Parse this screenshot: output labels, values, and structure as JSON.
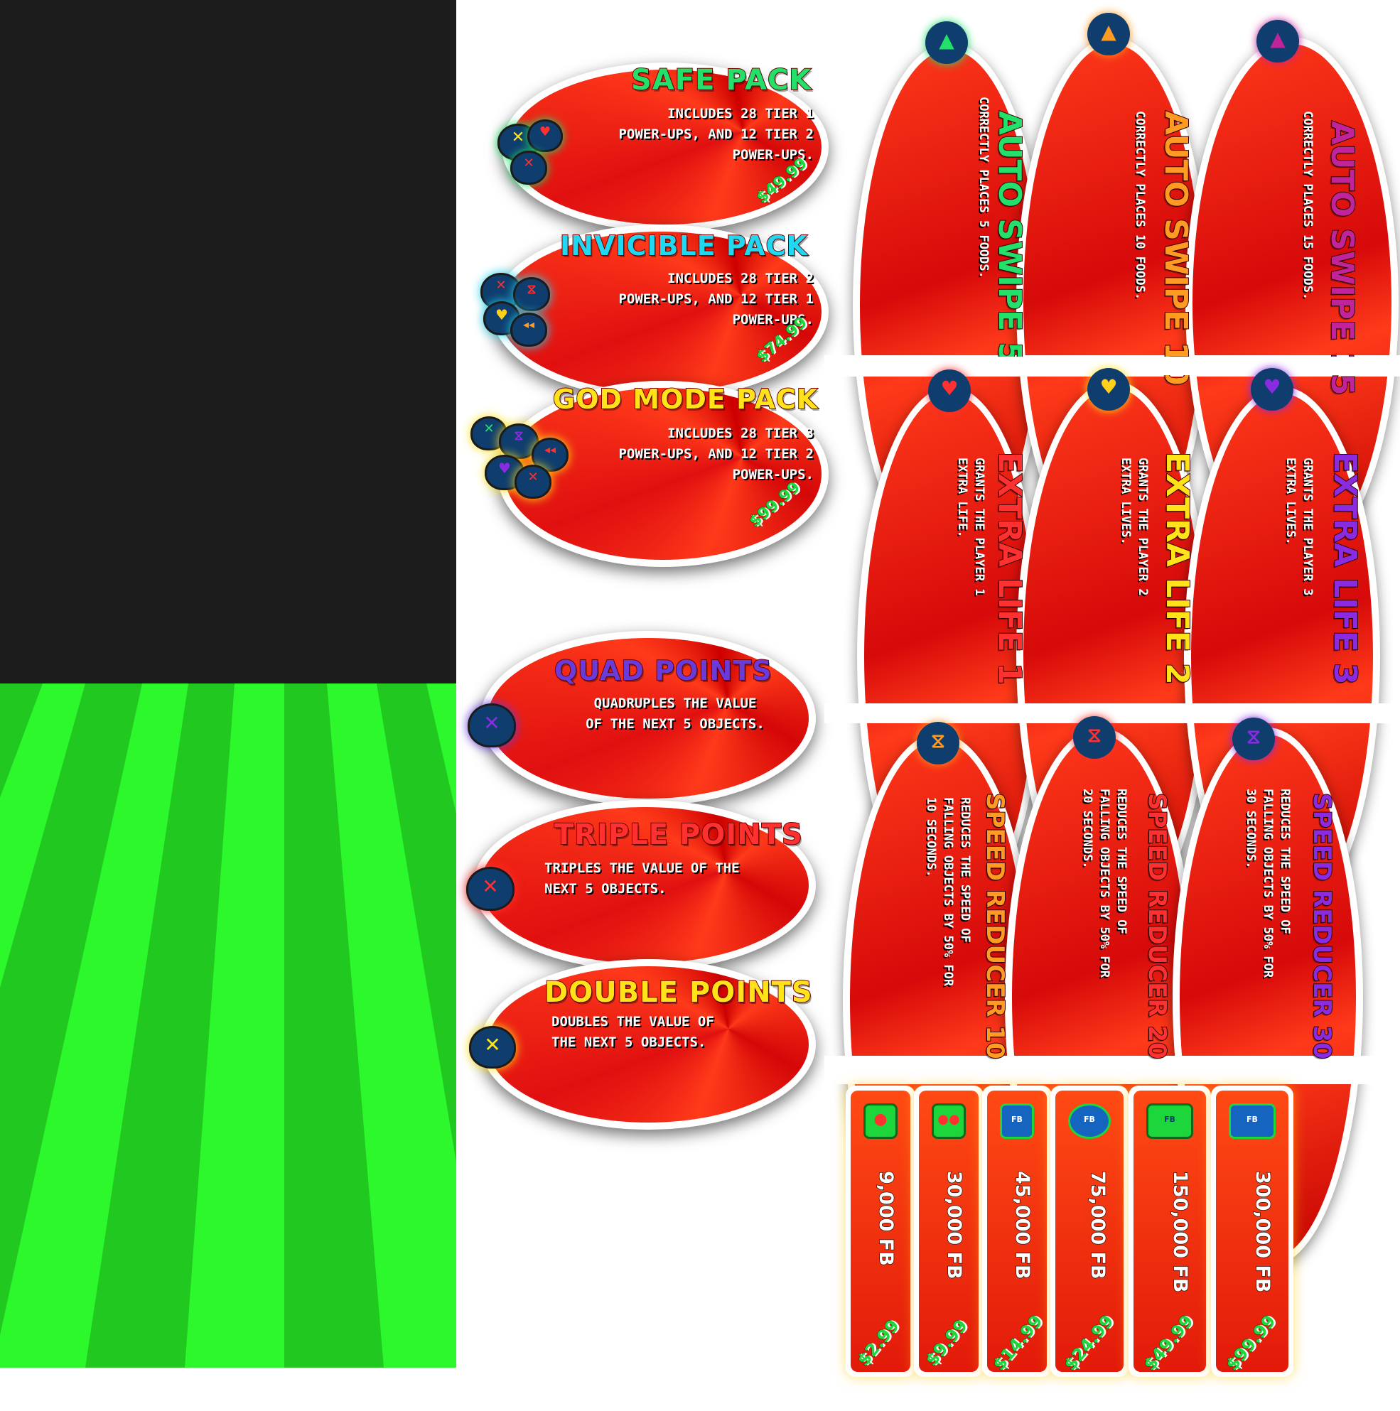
{
  "packs": [
    {
      "title": "SAFE PACK",
      "desc": "INCLUDES 28 TIER 1\nPOWER-UPS, AND 12 TIER 2\nPOWER-UPS.",
      "price": "$49.99",
      "color": "#22e06a"
    },
    {
      "title": "INVICIBLE PACK",
      "desc": "INCLUDES 28 TIER 2\nPOWER-UPS, AND 12 TIER 1\nPOWER-UPS.",
      "price": "$74.99",
      "color": "#22d8f0"
    },
    {
      "title": "GOD MODE PACK",
      "desc": "INCLUDES 28 TIER 3\nPOWER-UPS, AND 12 TIER 2\nPOWER-UPS.",
      "price": "$99.99",
      "color": "#ffe21a"
    }
  ],
  "points": [
    {
      "title": "QUAD POINTS",
      "desc": "QUADRUPLES THE VALUE\nOF THE NEXT 5 OBJECTS.",
      "color": "#6a3bd8",
      "symbol": "✕"
    },
    {
      "title": "TRIPLE POINTS",
      "desc": "TRIPLES THE VALUE OF THE\nNEXT 5 OBJECTS.",
      "color": "#ff3030",
      "symbol": "✕"
    },
    {
      "title": "DOUBLE POINTS",
      "desc": "DOUBLES THE VALUE OF\nTHE NEXT 5 OBJECTS.",
      "color": "#ffe21a",
      "symbol": "✕"
    }
  ],
  "auto_swipe": [
    {
      "title": "AUTO SWIPE 5",
      "desc": "CORRECTLY PLACES 5 FOODS.",
      "color": "#22e06a",
      "badge": "▲"
    },
    {
      "title": "AUTO SWIPE 10",
      "desc": "CORRECTLY PLACES 10 FOODS.",
      "color": "#ff9a22",
      "badge": "▲"
    },
    {
      "title": "AUTO SWIPE 15",
      "desc": "CORRECTLY PLACES 15 FOODS.",
      "color": "#c0249a",
      "badge": "▲"
    }
  ],
  "extra_life": [
    {
      "title": "EXTRA LIFE 1",
      "desc": "GRANTS THE PLAYER 1\nEXTRA LIFE.",
      "color": "#ff3030",
      "badge": "♥"
    },
    {
      "title": "EXTRA LIFE 2",
      "desc": "GRANTS THE PLAYER 2\nEXTRA LIVES.",
      "color": "#ffe21a",
      "badge": "♥"
    },
    {
      "title": "EXTRA LIFE 3",
      "desc": "GRANTS THE PLAYER 3\nEXTRA LIVES.",
      "color": "#8a2be2",
      "badge": "♥"
    }
  ],
  "speed_reducer": [
    {
      "title": "SPEED REDUCER 10",
      "desc": "REDUCES THE SPEED OF\nFALLING OBJECTS BY 50% FOR\n10 SECONDS.",
      "color": "#ff9a22",
      "badge": "⧖"
    },
    {
      "title": "SPEED REDUCER 20",
      "desc": "REDUCES THE SPEED OF\nFALLING OBJECTS BY 50% FOR\n20 SECONDS.",
      "color": "#ff3030",
      "badge": "⧖"
    },
    {
      "title": "SPEED REDUCER 30",
      "desc": "REDUCES THE SPEED OF\nFALLING OBJECTS BY 50% FOR\n30 SECONDS.",
      "color": "#8a2be2",
      "badge": "⧖"
    }
  ],
  "coins": [
    {
      "amount": "9,000 FB",
      "price": "$2.99"
    },
    {
      "amount": "30,000 FB",
      "price": "$9.99"
    },
    {
      "amount": "45,000 FB",
      "price": "$14.99"
    },
    {
      "amount": "75,000 FB",
      "price": "$24.99"
    },
    {
      "amount": "150,000 FB",
      "price": "$49.99"
    },
    {
      "amount": "300,000 FB",
      "price": "$99.99"
    }
  ],
  "coin_icon_label": "FB",
  "colors": {
    "black_panel": "#1c1c1c",
    "green_light": "#2cf82c",
    "green_dark": "#20c820",
    "card_red": "#ff3a1a"
  }
}
